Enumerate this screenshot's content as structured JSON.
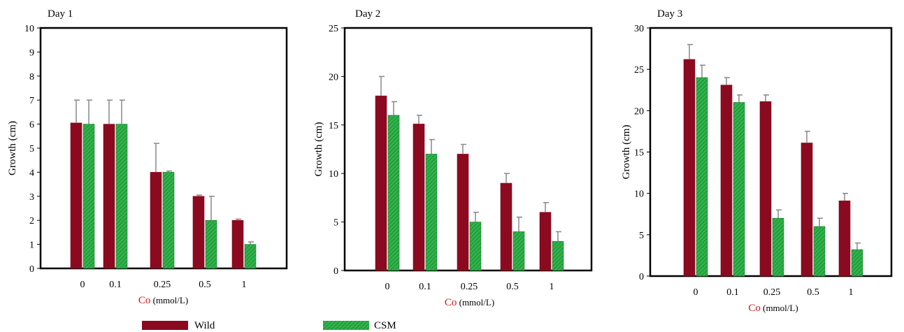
{
  "colors": {
    "wild": "#8b0a1f",
    "csm": "#2fb34a",
    "error_bar": "#888888"
  },
  "legend": [
    {
      "label": "Wild",
      "color": "#8b0a1f"
    },
    {
      "label": "CSM",
      "color": "#2fb34a"
    }
  ],
  "chart_data": [
    {
      "type": "bar",
      "title": "Day 1",
      "categories": [
        "0",
        "0.1",
        "0.25",
        "0.5",
        "1"
      ],
      "ylabel": "Growth (cm)",
      "xlabel_prefix": "Co",
      "xlabel_unit": " (mmol/L)",
      "ylim": [
        0,
        10
      ],
      "yticks": [
        0,
        1,
        2,
        3,
        4,
        5,
        6,
        7,
        8,
        9,
        10
      ],
      "series": [
        {
          "name": "Wild",
          "values": [
            6.05,
            6.0,
            4.0,
            3.0,
            2.0
          ],
          "errors": [
            0.95,
            1.0,
            1.2,
            0.05,
            0.05
          ]
        },
        {
          "name": "CSM",
          "values": [
            6.0,
            6.0,
            4.0,
            2.0,
            1.0
          ],
          "errors": [
            1.0,
            1.0,
            0.05,
            1.0,
            0.1
          ]
        }
      ]
    },
    {
      "type": "bar",
      "title": "Day 2",
      "categories": [
        "0",
        "0.1",
        "0.25",
        "0.5",
        "1"
      ],
      "ylabel": "Growth (cm)",
      "xlabel_prefix": "Co",
      "xlabel_unit": " (mmol/L)",
      "ylim": [
        0,
        25
      ],
      "yticks": [
        0,
        5,
        10,
        15,
        20,
        25
      ],
      "series": [
        {
          "name": "Wild",
          "values": [
            18.0,
            15.1,
            12.0,
            9.0,
            6.0
          ],
          "errors": [
            2.0,
            0.9,
            1.0,
            1.0,
            1.0
          ]
        },
        {
          "name": "CSM",
          "values": [
            16.0,
            12.0,
            5.0,
            4.0,
            3.0
          ],
          "errors": [
            1.4,
            1.5,
            1.0,
            1.5,
            1.0
          ]
        }
      ]
    },
    {
      "type": "bar",
      "title": "Day 3",
      "categories": [
        "0",
        "0.1",
        "0.25",
        "0.5",
        "1"
      ],
      "ylabel": "Growth (cm)",
      "xlabel_prefix": "Co",
      "xlabel_unit": " (mmol/L)",
      "ylim": [
        0,
        30
      ],
      "yticks": [
        0,
        5,
        10,
        15,
        20,
        25,
        30
      ],
      "series": [
        {
          "name": "Wild",
          "values": [
            26.2,
            23.1,
            21.1,
            16.1,
            9.1
          ],
          "errors": [
            1.8,
            0.9,
            0.8,
            1.4,
            0.9
          ]
        },
        {
          "name": "CSM",
          "values": [
            24.0,
            21.0,
            7.0,
            6.0,
            3.2
          ],
          "errors": [
            1.5,
            0.9,
            1.0,
            1.0,
            0.8
          ]
        }
      ]
    }
  ]
}
